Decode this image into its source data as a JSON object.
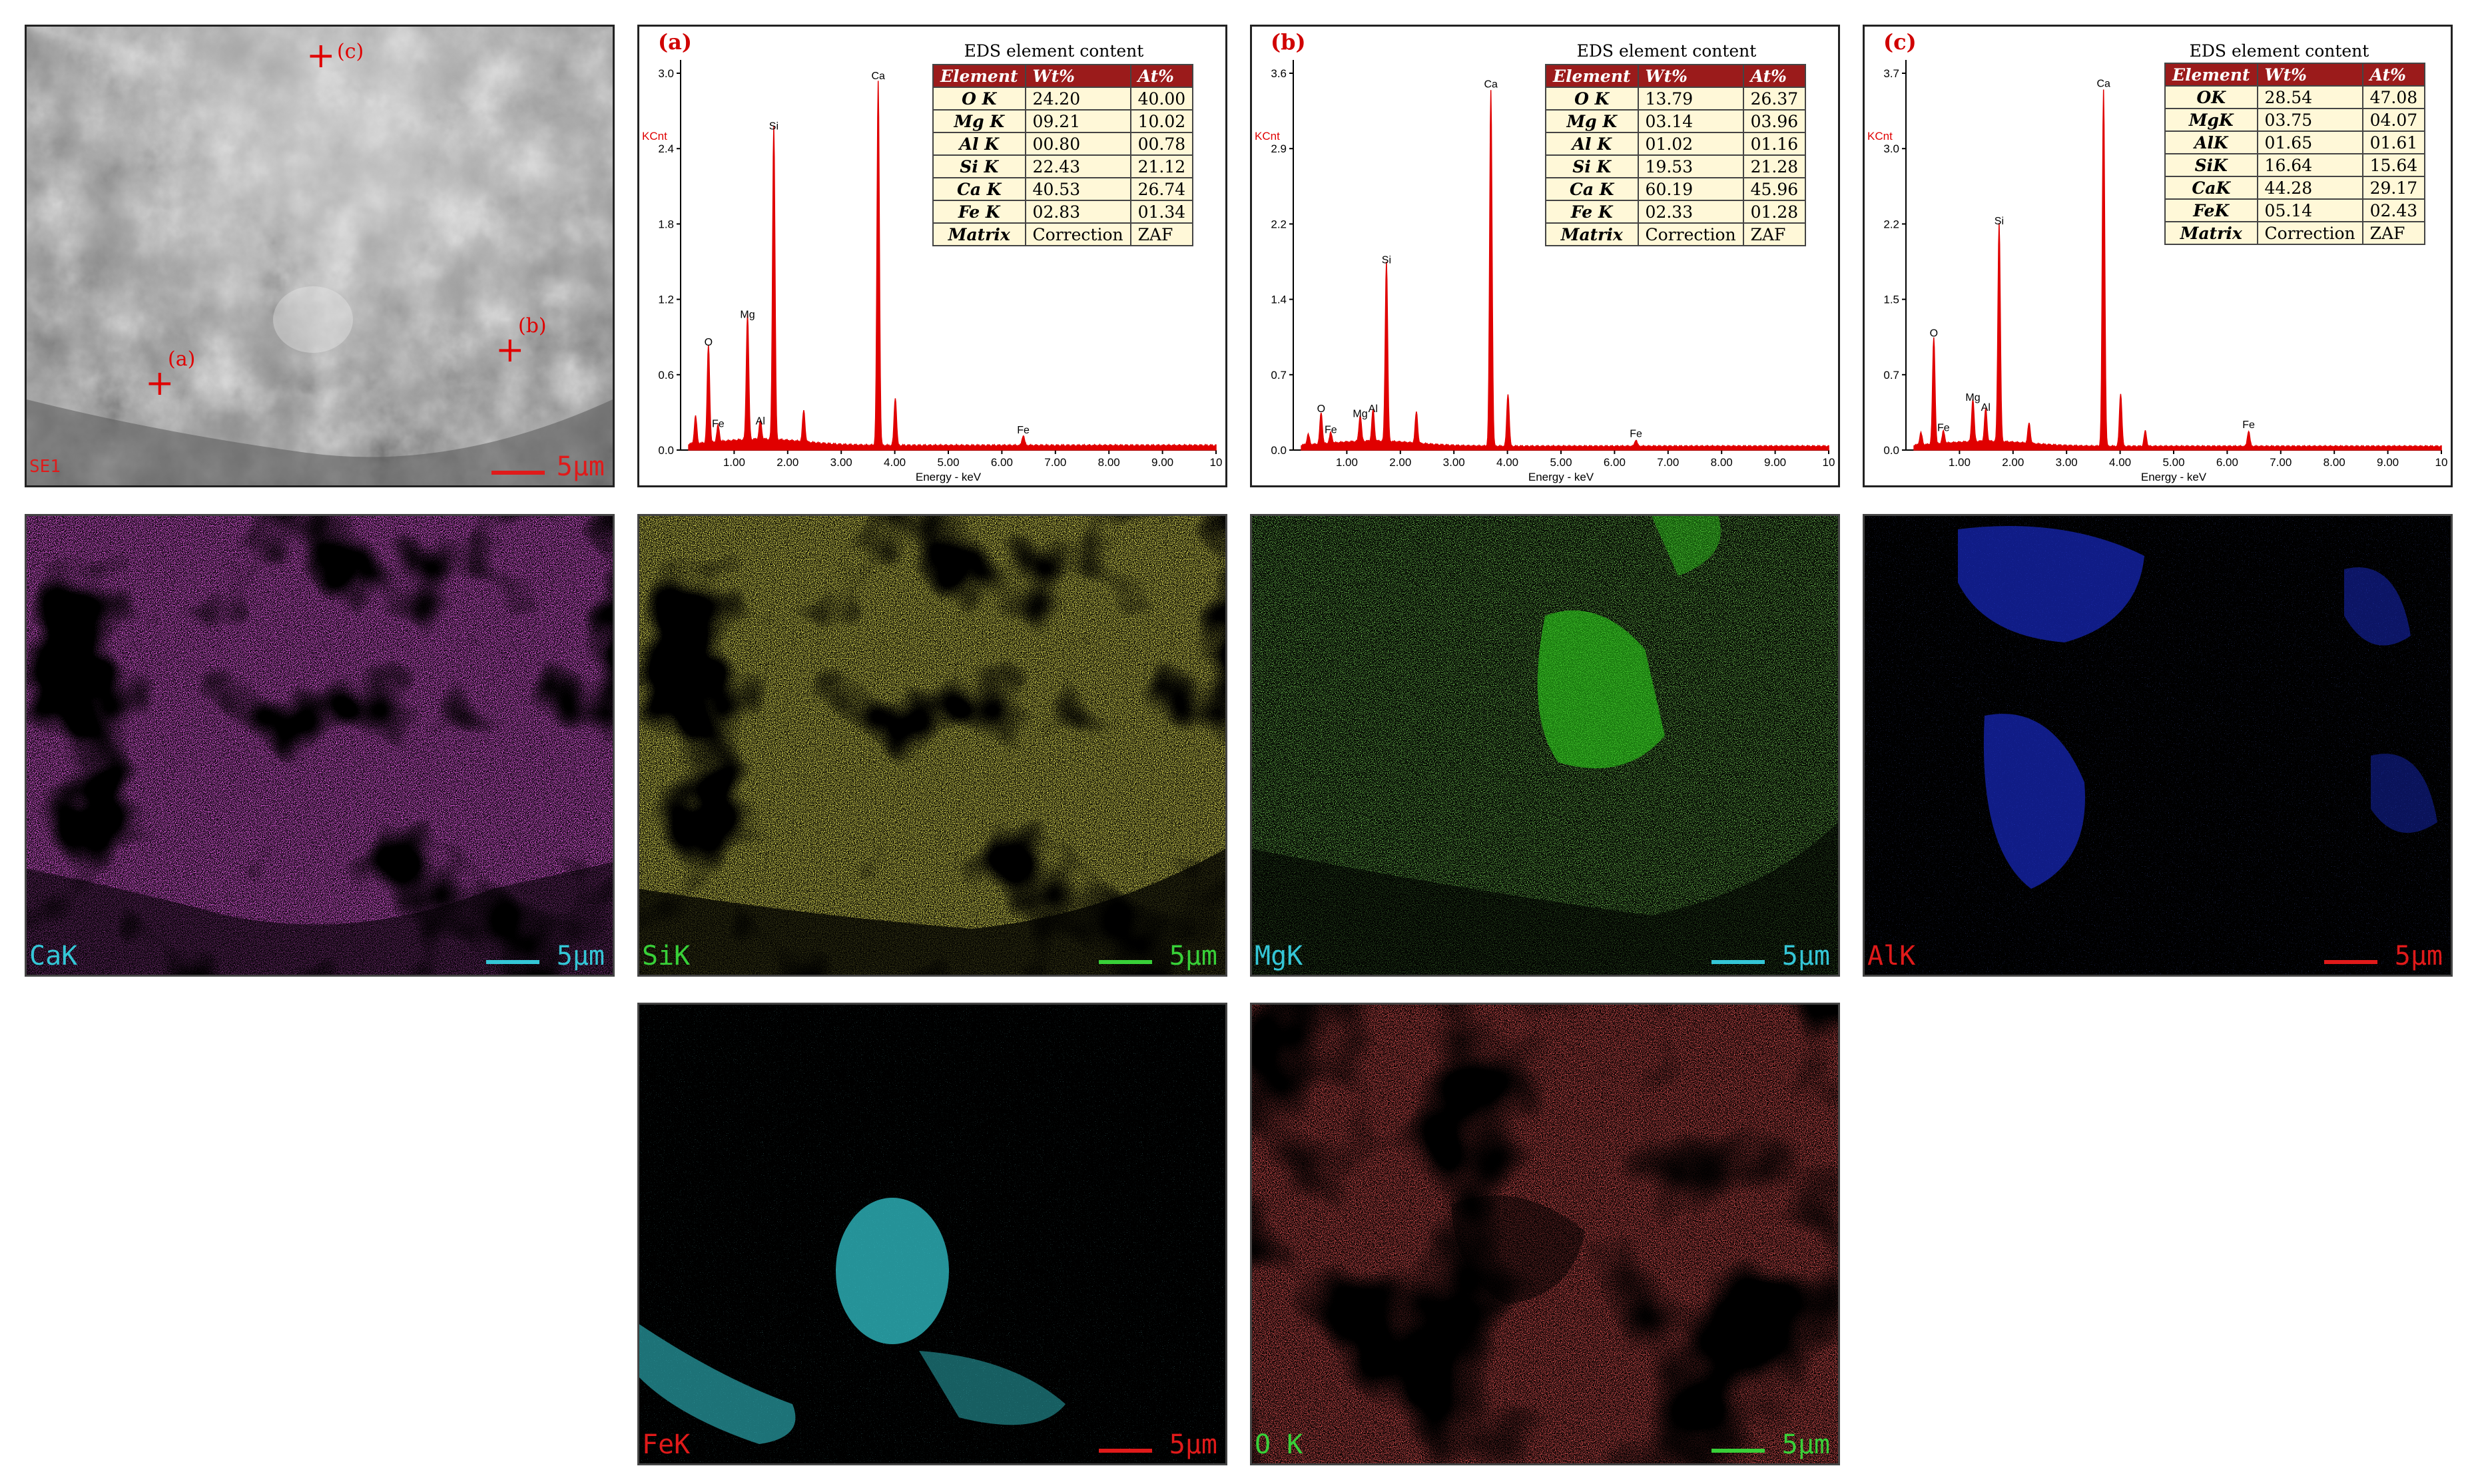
{
  "sem": {
    "detector_label": "SE1",
    "scale_text": "5µm",
    "points": [
      {
        "label": "(a)"
      },
      {
        "label": "(b)"
      },
      {
        "label": "(c)"
      }
    ]
  },
  "colors": {
    "spectrum": "#e00000",
    "ca_map": "#d81fd8",
    "si_map": "#c8c21a",
    "mg_map": "#3cd01e",
    "al_map": "#1a2fe0",
    "fe_map": "#34d0d8",
    "o_map": "#e01a1a"
  },
  "chart_data": [
    {
      "type": "line",
      "panel_label": "(a)",
      "ylabel": "KCnt",
      "xlabel": "Energy - keV",
      "xlim": [
        0,
        10
      ],
      "ylim": [
        0,
        3.0
      ],
      "yticks": [
        "0.0",
        "0.6",
        "1.2",
        "1.8",
        "2.4",
        "3.0"
      ],
      "xticks": [
        "1.00",
        "2.00",
        "3.00",
        "4.00",
        "5.00",
        "6.00",
        "7.00",
        "8.00",
        "9.00",
        "10"
      ],
      "peaks": [
        {
          "label": "O",
          "x": 0.52,
          "y": 0.78
        },
        {
          "label": "Fe",
          "x": 0.7,
          "y": 0.13
        },
        {
          "label": "Mg",
          "x": 1.25,
          "y": 1.0
        },
        {
          "label": "Al",
          "x": 1.49,
          "y": 0.15
        },
        {
          "label": "Si",
          "x": 1.74,
          "y": 2.5
        },
        {
          "label": "Ca",
          "x": 3.69,
          "y": 2.9
        },
        {
          "label": "Fe",
          "x": 6.4,
          "y": 0.08
        }
      ],
      "extra_peaks": [
        {
          "x": 0.28,
          "y": 0.22
        },
        {
          "x": 2.3,
          "y": 0.25
        },
        {
          "x": 4.01,
          "y": 0.38
        }
      ],
      "table": {
        "title": "EDS element content",
        "headers": [
          "Element",
          "Wt%",
          "At%"
        ],
        "rows": [
          [
            "O K",
            "24.20",
            "40.00"
          ],
          [
            "Mg K",
            "09.21",
            "10.02"
          ],
          [
            "Al K",
            "00.80",
            "00.78"
          ],
          [
            "Si K",
            "22.43",
            "21.12"
          ],
          [
            "Ca K",
            "40.53",
            "26.74"
          ],
          [
            "Fe K",
            "02.83",
            "01.34"
          ],
          [
            "Matrix",
            "Correction",
            "ZAF"
          ]
        ]
      }
    },
    {
      "type": "line",
      "panel_label": "(b)",
      "ylabel": "KCnt",
      "xlabel": "Energy - keV",
      "xlim": [
        0,
        10
      ],
      "ylim": [
        0,
        3.6
      ],
      "yticks": [
        "0.0",
        "0.7",
        "1.4",
        "2.2",
        "2.9",
        "3.6"
      ],
      "xticks": [
        "1.00",
        "2.00",
        "3.00",
        "4.00",
        "5.00",
        "6.00",
        "7.00",
        "8.00",
        "9.00",
        "10"
      ],
      "peaks": [
        {
          "label": "O",
          "x": 0.52,
          "y": 0.3
        },
        {
          "label": "Fe",
          "x": 0.7,
          "y": 0.1
        },
        {
          "label": "Mg",
          "x": 1.25,
          "y": 0.25
        },
        {
          "label": "Al",
          "x": 1.49,
          "y": 0.3
        },
        {
          "label": "Si",
          "x": 1.74,
          "y": 1.72
        },
        {
          "label": "Ca",
          "x": 3.69,
          "y": 3.4
        },
        {
          "label": "Fe",
          "x": 6.4,
          "y": 0.06
        }
      ],
      "extra_peaks": [
        {
          "x": 0.28,
          "y": 0.1
        },
        {
          "x": 2.3,
          "y": 0.3
        },
        {
          "x": 4.01,
          "y": 0.5
        }
      ],
      "table": {
        "title": "EDS element content",
        "headers": [
          "Element",
          "Wt%",
          "At%"
        ],
        "rows": [
          [
            "O K",
            "13.79",
            "26.37"
          ],
          [
            "Mg K",
            "03.14",
            "03.96"
          ],
          [
            "Al K",
            "01.02",
            "01.16"
          ],
          [
            "Si K",
            "19.53",
            "21.28"
          ],
          [
            "Ca K",
            "60.19",
            "45.96"
          ],
          [
            "Fe K",
            "02.33",
            "01.28"
          ],
          [
            "Matrix",
            "Correction",
            "ZAF"
          ]
        ]
      }
    },
    {
      "type": "line",
      "panel_label": "(c)",
      "ylabel": "KCnt",
      "xlabel": "Energy - keV",
      "xlim": [
        0,
        10
      ],
      "ylim": [
        0,
        3.7
      ],
      "yticks": [
        "0.0",
        "0.7",
        "1.5",
        "2.2",
        "3.0",
        "3.7"
      ],
      "xticks": [
        "1.00",
        "2.00",
        "3.00",
        "4.00",
        "5.00",
        "6.00",
        "7.00",
        "8.00",
        "9.00",
        "10"
      ],
      "peaks": [
        {
          "label": "O",
          "x": 0.52,
          "y": 1.05
        },
        {
          "label": "Fe",
          "x": 0.7,
          "y": 0.12
        },
        {
          "label": "Mg",
          "x": 1.25,
          "y": 0.42
        },
        {
          "label": "Al",
          "x": 1.49,
          "y": 0.32
        },
        {
          "label": "Si",
          "x": 1.74,
          "y": 2.15
        },
        {
          "label": "Ca",
          "x": 3.69,
          "y": 3.5
        },
        {
          "label": "Fe",
          "x": 6.4,
          "y": 0.15
        }
      ],
      "extra_peaks": [
        {
          "x": 0.28,
          "y": 0.12
        },
        {
          "x": 2.3,
          "y": 0.2
        },
        {
          "x": 4.01,
          "y": 0.52
        },
        {
          "x": 4.47,
          "y": 0.15
        }
      ],
      "table": {
        "title": "EDS element content",
        "headers": [
          "Element",
          "Wt%",
          "At%"
        ],
        "rows": [
          [
            "OK",
            "28.54",
            "47.08"
          ],
          [
            "MgK",
            "03.75",
            "04.07"
          ],
          [
            "AlK",
            "01.65",
            "01.61"
          ],
          [
            "SiK",
            "16.64",
            "15.64"
          ],
          [
            "CaK",
            "44.28",
            "29.17"
          ],
          [
            "FeK",
            "05.14",
            "02.43"
          ],
          [
            "Matrix",
            "Correction",
            "ZAF"
          ]
        ]
      }
    }
  ],
  "maps": [
    {
      "label": "CaK",
      "label_color": "#34c6d6",
      "scale_text": "5µm",
      "scale_color": "#34c6d6"
    },
    {
      "label": "SiK",
      "label_color": "#38d038",
      "scale_text": "5µm",
      "scale_color": "#38d038"
    },
    {
      "label": "MgK",
      "label_color": "#34c6d6",
      "scale_text": "5µm",
      "scale_color": "#34c6d6"
    },
    {
      "label": "AlK",
      "label_color": "#e01a1a",
      "scale_text": "5µm",
      "scale_color": "#e01a1a"
    },
    {
      "label": "FeK",
      "label_color": "#e01a1a",
      "scale_text": "5µm",
      "scale_color": "#e01a1a"
    },
    {
      "label": "O K",
      "label_color": "#38d038",
      "scale_text": "5µm",
      "scale_color": "#38d038"
    }
  ]
}
